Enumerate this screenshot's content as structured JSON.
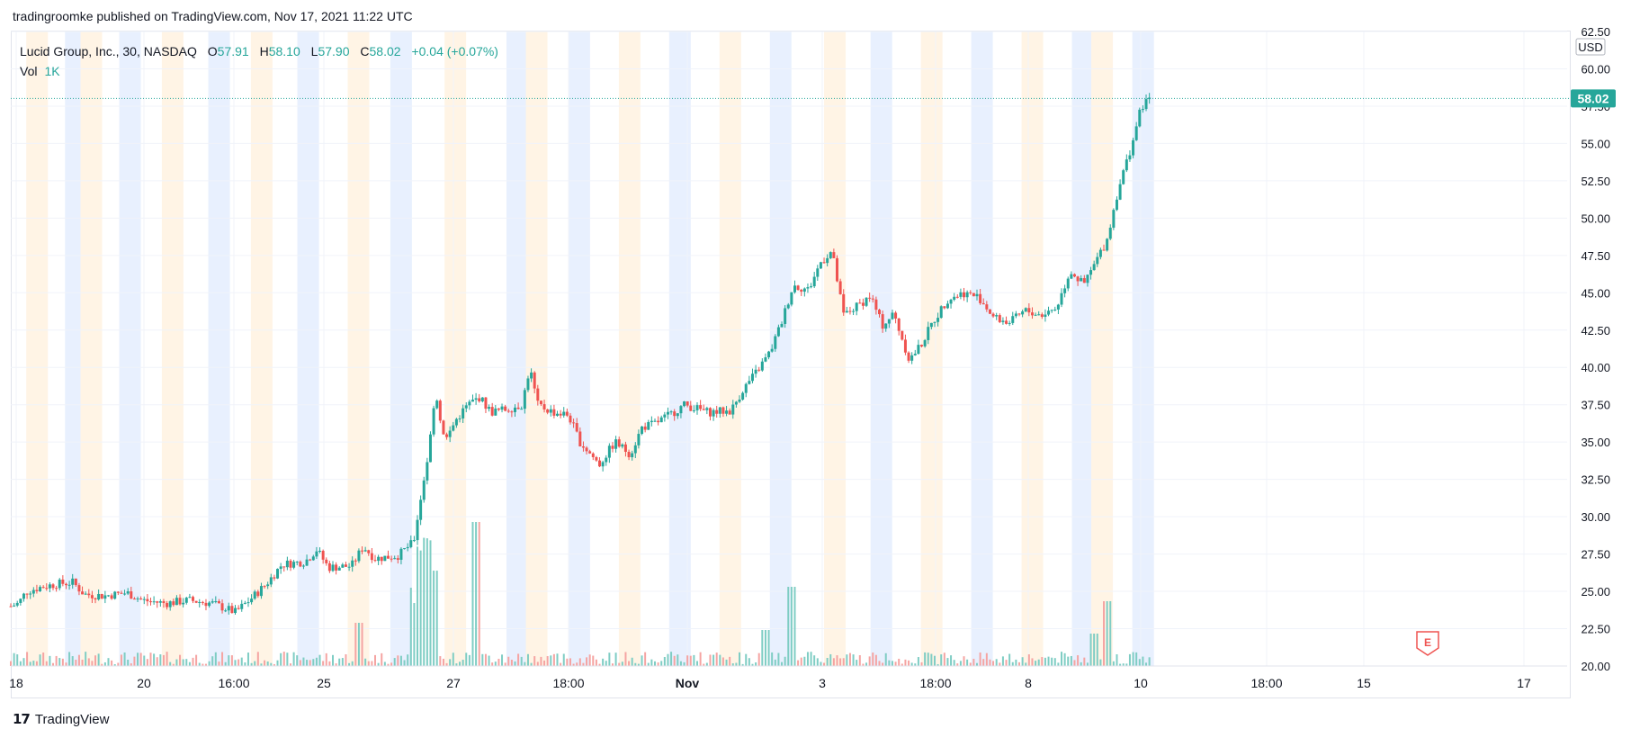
{
  "header": {
    "publisher": "tradingroomke published on TradingView.com, Nov 17, 2021 11:22 UTC"
  },
  "legend": {
    "symbol": "Lucid Group, Inc., 30, NASDAQ",
    "open_label": "O",
    "open": "57.91",
    "high_label": "H",
    "high": "58.10",
    "low_label": "L",
    "low": "57.90",
    "close_label": "C",
    "close": "58.02",
    "change": "+0.04 (+0.07%)",
    "vol_label": "Vol",
    "vol_value": "1K"
  },
  "axis": {
    "currency": "USD",
    "last_price_badge": "58.02",
    "earnings_marker": "E"
  },
  "footer": {
    "brand_logo": "17",
    "brand": "TradingView"
  },
  "colors": {
    "up": "#26a69a",
    "down": "#ef5350",
    "volume_up": "#7fcdc4",
    "volume_down": "#f5a4a2",
    "session_pre": "#e8f0fe",
    "session_post": "#fff4e5",
    "grid": "#f0f3fa",
    "axis_text": "#131722"
  },
  "chart_data": {
    "type": "candlestick",
    "title": "Lucid Group, Inc., 30, NASDAQ",
    "ylim": [
      20,
      62.5
    ],
    "y_ticks": [
      "62.50",
      "60.00",
      "57.50",
      "55.00",
      "52.50",
      "50.00",
      "47.50",
      "45.00",
      "42.50",
      "40.00",
      "37.50",
      "35.00",
      "32.50",
      "30.00",
      "27.50",
      "25.00",
      "22.50",
      "20.00"
    ],
    "x_tick_labels": [
      {
        "label": "18",
        "bold": false
      },
      {
        "label": "20",
        "bold": false
      },
      {
        "label": "16:00",
        "bold": false
      },
      {
        "label": "25",
        "bold": false
      },
      {
        "label": "27",
        "bold": false
      },
      {
        "label": "18:00",
        "bold": false
      },
      {
        "label": "Nov",
        "bold": true
      },
      {
        "label": "3",
        "bold": false
      },
      {
        "label": "18:00",
        "bold": false
      },
      {
        "label": "8",
        "bold": false
      },
      {
        "label": "10",
        "bold": false
      },
      {
        "label": "18:00",
        "bold": false
      },
      {
        "label": "15",
        "bold": false
      },
      {
        "label": "17",
        "bold": false
      }
    ],
    "last_price": 58.02,
    "price_path": [
      [
        0,
        24.0
      ],
      [
        10,
        24.2
      ],
      [
        20,
        25.0
      ],
      [
        40,
        25.3
      ],
      [
        60,
        25.5
      ],
      [
        80,
        25.6
      ],
      [
        95,
        24.8
      ],
      [
        120,
        24.7
      ],
      [
        150,
        24.9
      ],
      [
        170,
        24.4
      ],
      [
        200,
        24.2
      ],
      [
        230,
        24.4
      ],
      [
        260,
        24.2
      ],
      [
        290,
        23.6
      ],
      [
        310,
        24.5
      ],
      [
        330,
        25.5
      ],
      [
        350,
        26.8
      ],
      [
        380,
        27.0
      ],
      [
        395,
        27.8
      ],
      [
        410,
        26.6
      ],
      [
        440,
        26.7
      ],
      [
        455,
        28.0
      ],
      [
        470,
        27.2
      ],
      [
        500,
        27.4
      ],
      [
        520,
        28.3
      ],
      [
        530,
        31.5
      ],
      [
        540,
        34.5
      ],
      [
        548,
        38.5
      ],
      [
        560,
        35.0
      ],
      [
        575,
        36.5
      ],
      [
        590,
        37.5
      ],
      [
        605,
        38.0
      ],
      [
        620,
        37.0
      ],
      [
        640,
        37.2
      ],
      [
        660,
        37.5
      ],
      [
        670,
        40.0
      ],
      [
        680,
        37.5
      ],
      [
        700,
        37.0
      ],
      [
        720,
        36.8
      ],
      [
        735,
        35.0
      ],
      [
        760,
        33.5
      ],
      [
        780,
        35.0
      ],
      [
        800,
        34.2
      ],
      [
        815,
        36.0
      ],
      [
        830,
        36.2
      ],
      [
        850,
        36.8
      ],
      [
        870,
        37.5
      ],
      [
        900,
        37.0
      ],
      [
        930,
        37.1
      ],
      [
        945,
        38.5
      ],
      [
        960,
        39.5
      ],
      [
        980,
        41.0
      ],
      [
        995,
        43.0
      ],
      [
        1010,
        45.5
      ],
      [
        1030,
        45.2
      ],
      [
        1045,
        47.0
      ],
      [
        1060,
        47.8
      ],
      [
        1075,
        43.5
      ],
      [
        1090,
        44.0
      ],
      [
        1110,
        44.8
      ],
      [
        1125,
        42.8
      ],
      [
        1140,
        43.6
      ],
      [
        1160,
        40.5
      ],
      [
        1175,
        41.5
      ],
      [
        1190,
        43.0
      ],
      [
        1210,
        44.6
      ],
      [
        1230,
        45.0
      ],
      [
        1250,
        44.7
      ],
      [
        1270,
        43.3
      ],
      [
        1290,
        43.0
      ],
      [
        1310,
        43.8
      ],
      [
        1330,
        43.5
      ],
      [
        1350,
        44.0
      ],
      [
        1368,
        46.5
      ],
      [
        1385,
        45.5
      ],
      [
        1400,
        47.0
      ],
      [
        1415,
        48.5
      ],
      [
        1430,
        52.0
      ],
      [
        1445,
        54.5
      ],
      [
        1460,
        57.5
      ],
      [
        1472,
        58.02
      ]
    ],
    "volume_spikes": [
      [
        520,
        15
      ],
      [
        530,
        30
      ],
      [
        540,
        28
      ],
      [
        548,
        25
      ],
      [
        600,
        40
      ],
      [
        1010,
        22
      ],
      [
        1415,
        18
      ],
      [
        1400,
        9
      ],
      [
        450,
        12
      ],
      [
        975,
        10
      ]
    ],
    "session_bands": [
      [
        20,
        0
      ],
      [
        70,
        1
      ],
      [
        90,
        0
      ],
      [
        140,
        1
      ],
      [
        195,
        0
      ],
      [
        255,
        1
      ],
      [
        310,
        0
      ],
      [
        370,
        1
      ],
      [
        435,
        0
      ],
      [
        490,
        1
      ],
      [
        560,
        0
      ],
      [
        640,
        1
      ],
      [
        665,
        0
      ],
      [
        720,
        1
      ],
      [
        785,
        0
      ],
      [
        850,
        1
      ],
      [
        915,
        0
      ],
      [
        980,
        1
      ],
      [
        1050,
        0
      ],
      [
        1110,
        1
      ],
      [
        1175,
        0
      ],
      [
        1240,
        1
      ],
      [
        1305,
        0
      ],
      [
        1370,
        1
      ],
      [
        1395,
        0
      ],
      [
        1448,
        1
      ]
    ]
  }
}
